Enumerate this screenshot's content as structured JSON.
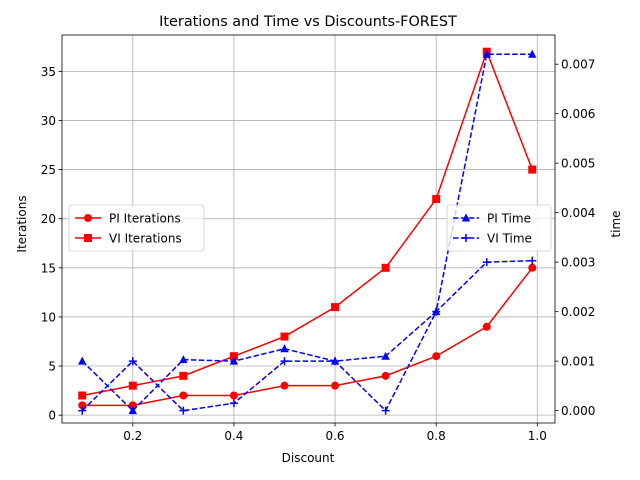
{
  "chart_data": {
    "type": "line",
    "title": "Iterations and Time vs Discounts-FOREST",
    "xlabel": "Discount",
    "ylabel_left": "Iterations",
    "ylabel_right": "time",
    "xlim": [
      0.06,
      1.035
    ],
    "ylim_left": [
      -0.8,
      38.7
    ],
    "ylim_right": [
      -0.00025,
      0.00759
    ],
    "x_ticks": [
      0.2,
      0.4,
      0.6,
      0.8,
      1.0
    ],
    "x_tick_labels": [
      "0.2",
      "0.4",
      "0.6",
      "0.8",
      "1.0"
    ],
    "y_left_ticks": [
      0,
      5,
      10,
      15,
      20,
      25,
      30,
      35
    ],
    "y_left_tick_labels": [
      "0",
      "5",
      "10",
      "15",
      "20",
      "25",
      "30",
      "35"
    ],
    "y_right_ticks": [
      0.0,
      0.001,
      0.002,
      0.003,
      0.004,
      0.005,
      0.006,
      0.007
    ],
    "y_right_tick_labels": [
      "0.000",
      "0.001",
      "0.002",
      "0.003",
      "0.004",
      "0.005",
      "0.006",
      "0.007"
    ],
    "grid": true,
    "x": [
      0.1,
      0.2,
      0.3,
      0.4,
      0.5,
      0.6,
      0.7,
      0.8,
      0.9,
      0.99
    ],
    "series": [
      {
        "name": "PI Iterations",
        "axis": "left",
        "color": "#ff0000",
        "marker": "circle",
        "linestyle": "solid",
        "values": [
          1,
          1,
          2,
          2,
          3,
          3,
          4,
          6,
          9,
          15
        ]
      },
      {
        "name": "VI Iterations",
        "axis": "left",
        "color": "#ff0000",
        "marker": "square",
        "linestyle": "solid",
        "values": [
          2,
          3,
          4,
          6,
          8,
          11,
          15,
          22,
          37,
          25
        ]
      },
      {
        "name": "PI Time",
        "axis": "right",
        "color": "#0000ff",
        "marker": "triangle",
        "linestyle": "dashed",
        "values": [
          0.001,
          0.0,
          0.00103,
          0.001,
          0.00125,
          0.001,
          0.0011,
          0.002,
          0.0072,
          0.0072
        ]
      },
      {
        "name": "VI Time",
        "axis": "right",
        "color": "#0000ff",
        "marker": "plus",
        "linestyle": "dashed",
        "values": [
          0.0,
          0.001,
          0.0,
          0.00015,
          0.001,
          0.001,
          0.0,
          0.002,
          0.003,
          0.00303
        ]
      }
    ],
    "legend_left": [
      "PI Iterations",
      "VI Iterations"
    ],
    "legend_right": [
      "PI Time",
      "VI Time"
    ],
    "legend_left_position": "center-left",
    "legend_right_position": "center-right"
  }
}
